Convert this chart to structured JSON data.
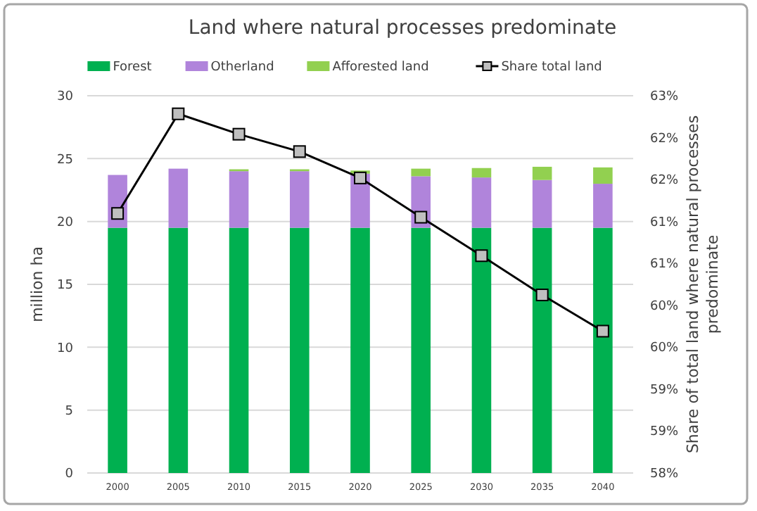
{
  "chart_data": {
    "type": "bar",
    "stacked": true,
    "title": "Land where natural processes predominate",
    "ylabel": "million ha",
    "y2label": "Share of total land where natural processes predominate",
    "categories": [
      "2000",
      "2005",
      "2010",
      "2015",
      "2020",
      "2025",
      "2030",
      "2035",
      "2040"
    ],
    "series": [
      {
        "name": "Forest",
        "color": "#00b050",
        "values": [
          19.5,
          19.5,
          19.5,
          19.5,
          19.5,
          19.5,
          19.5,
          19.5,
          19.5
        ]
      },
      {
        "name": "Otherland",
        "color": "#b084db",
        "values": [
          4.2,
          4.7,
          4.5,
          4.5,
          4.3,
          4.1,
          4.0,
          3.8,
          3.5
        ]
      },
      {
        "name": "Afforested land",
        "color": "#92d050",
        "values": [
          0,
          0,
          0.15,
          0.15,
          0.25,
          0.6,
          0.75,
          1.05,
          1.3
        ]
      },
      {
        "name": "Share total land",
        "type": "line",
        "axis": "y2",
        "color": "#000000",
        "values": [
          61.44,
          62.76,
          62.49,
          62.26,
          61.91,
          61.39,
          60.88,
          60.36,
          59.88
        ]
      }
    ],
    "ylim": [
      0,
      30
    ],
    "yticks": [
      0,
      5,
      10,
      15,
      20,
      25,
      30
    ],
    "y2lim": [
      58,
      63
    ],
    "y2ticks": [
      {
        "value": 58,
        "label": "58%"
      },
      {
        "value": 58.56,
        "label": "59%"
      },
      {
        "value": 59.11,
        "label": "59%"
      },
      {
        "value": 59.67,
        "label": "60%"
      },
      {
        "value": 60.22,
        "label": "60%"
      },
      {
        "value": 60.78,
        "label": "61%"
      },
      {
        "value": 61.33,
        "label": "61%"
      },
      {
        "value": 61.89,
        "label": "62%"
      },
      {
        "value": 62.44,
        "label": "62%"
      },
      {
        "value": 63,
        "label": "63%"
      }
    ],
    "grid": "y",
    "legend": "top",
    "marker": "square",
    "line_style": "solid"
  }
}
